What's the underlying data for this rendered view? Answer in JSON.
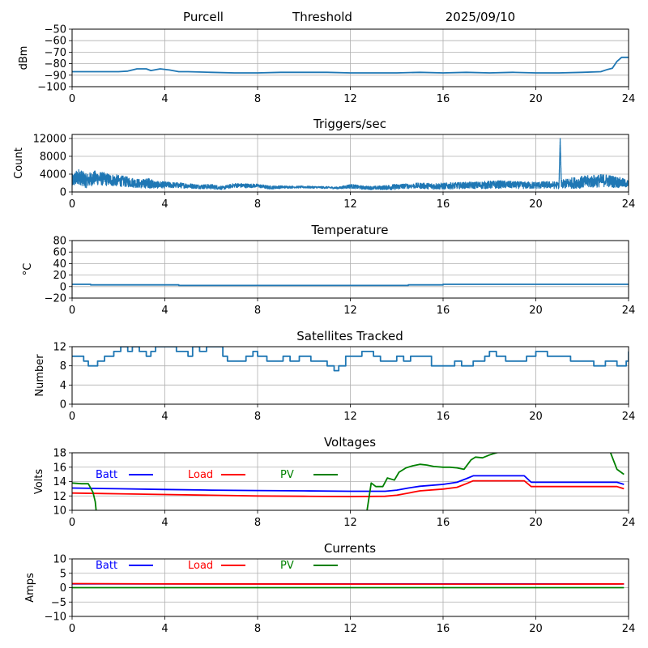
{
  "header": {
    "station": "Purcell",
    "mode": "Threshold",
    "date": "2025/09/10"
  },
  "chart_data": [
    {
      "type": "line",
      "title": "",
      "xlabel": "",
      "ylabel": "dBm",
      "xlim": [
        0,
        24
      ],
      "ylim": [
        -100,
        -50
      ],
      "xticks": [
        "0",
        "4",
        "8",
        "12",
        "16",
        "20",
        "24"
      ],
      "yticks": [
        "-50",
        "-60",
        "-70",
        "-80",
        "-90",
        "-100"
      ],
      "ytick_values": [
        -50,
        -60,
        -70,
        -80,
        -90,
        -100
      ],
      "grid": true,
      "series": [
        {
          "name": "Threshold",
          "color": "#1f77b4",
          "x": [
            0,
            1,
            2,
            2.4,
            2.8,
            3.2,
            3.4,
            3.8,
            4.2,
            4.6,
            5,
            6,
            7,
            8,
            9,
            10,
            11,
            12,
            13,
            14,
            15,
            16,
            17,
            18,
            19,
            20,
            21,
            22,
            22.8,
            23.1,
            23.3,
            23.5,
            23.7,
            24
          ],
          "y": [
            -87,
            -87,
            -87,
            -86.5,
            -84.5,
            -84.5,
            -86,
            -84.5,
            -85.5,
            -87,
            -87,
            -87.5,
            -88,
            -88,
            -87.5,
            -87.5,
            -87.5,
            -88,
            -88,
            -88,
            -87.5,
            -88,
            -87.5,
            -88,
            -87.5,
            -88,
            -88,
            -87.5,
            -87,
            -85,
            -84,
            -78,
            -74.5,
            -74.5
          ]
        }
      ]
    },
    {
      "type": "line",
      "title": "Triggers/sec",
      "xlabel": "",
      "ylabel": "Count",
      "xlim": [
        0,
        24
      ],
      "ylim": [
        0,
        12900
      ],
      "xticks": [
        "0",
        "4",
        "8",
        "12",
        "16",
        "20",
        "24"
      ],
      "yticks": [
        "0",
        "4000",
        "8000",
        "12000"
      ],
      "ytick_values": [
        0,
        4000,
        8000,
        12000
      ],
      "grid": true,
      "series": [
        {
          "name": "Triggers",
          "color": "#1f77b4",
          "x": [
            0,
            0.3,
            0.6,
            1,
            1.5,
            2,
            2.5,
            3,
            3.3,
            3.6,
            4,
            4.5,
            5,
            5.5,
            6,
            6.5,
            7,
            7.5,
            8,
            8.5,
            9,
            9.5,
            10,
            10.5,
            11,
            11.5,
            12,
            12.5,
            13,
            13.5,
            13.9,
            14.3,
            15,
            15.5,
            16,
            16.5,
            17,
            17.5,
            18,
            18.5,
            19,
            19.5,
            20,
            20.5,
            21,
            21.05,
            21.1,
            21.5,
            22,
            22.5,
            23,
            23.5,
            24
          ],
          "y": [
            2500,
            3500,
            2500,
            3200,
            2800,
            2500,
            2200,
            1800,
            2000,
            1600,
            1600,
            1500,
            1400,
            1200,
            1200,
            900,
            1500,
            1400,
            1400,
            1000,
            1100,
            1100,
            1100,
            1050,
            1000,
            900,
            1300,
            1000,
            900,
            1000,
            1100,
            1300,
            1400,
            1300,
            1300,
            1400,
            1500,
            1500,
            1600,
            1700,
            1600,
            1500,
            1500,
            1600,
            1500,
            12000,
            1700,
            2000,
            2200,
            2400,
            2600,
            2200,
            1800
          ],
          "noise_amplitude": [
            1800,
            2200,
            2000,
            2000,
            1800,
            1600,
            1400,
            1200,
            1400,
            1000,
            900,
            800,
            700,
            600,
            700,
            500,
            600,
            600,
            500,
            500,
            400,
            300,
            300,
            300,
            300,
            300,
            600,
            500,
            500,
            600,
            800,
            700,
            800,
            900,
            900,
            900,
            900,
            1000,
            1100,
            1100,
            1000,
            1000,
            1000,
            1000,
            1000,
            0,
            1200,
            1500,
            1700,
            1800,
            1800,
            1600,
            1000
          ]
        }
      ]
    },
    {
      "type": "line",
      "title": "Temperature",
      "xlabel": "",
      "ylabel": "°C",
      "xlim": [
        0,
        24
      ],
      "ylim": [
        -20,
        80
      ],
      "xticks": [
        "0",
        "4",
        "8",
        "12",
        "16",
        "20",
        "24"
      ],
      "yticks": [
        "-20",
        "0",
        "20",
        "40",
        "60",
        "80"
      ],
      "ytick_values": [
        -20,
        0,
        20,
        40,
        60,
        80
      ],
      "grid": true,
      "series": [
        {
          "name": "Temperature",
          "color": "#1f77b4",
          "x": [
            0,
            0.8,
            0.8,
            4.6,
            4.6,
            14.5,
            14.5,
            16,
            16,
            24
          ],
          "y": [
            4,
            4,
            3,
            3,
            2,
            2,
            3,
            3,
            4,
            4
          ]
        }
      ]
    },
    {
      "type": "line",
      "title": "Satellites Tracked",
      "xlabel": "",
      "ylabel": "Number",
      "xlim": [
        0,
        24
      ],
      "ylim": [
        0,
        12
      ],
      "xticks": [
        "0",
        "4",
        "8",
        "12",
        "16",
        "20",
        "24"
      ],
      "yticks": [
        "0",
        "4",
        "8",
        "12"
      ],
      "ytick_values": [
        0,
        4,
        8,
        12
      ],
      "grid": true,
      "series": [
        {
          "name": "Satellites",
          "color": "#1f77b4",
          "step": true,
          "x": [
            0,
            0.1,
            0.5,
            0.7,
            1.1,
            1.4,
            1.8,
            2.1,
            2.4,
            2.6,
            2.9,
            3.2,
            3.4,
            3.6,
            4.5,
            5,
            5.2,
            5.5,
            5.8,
            6.5,
            6.7,
            7,
            7.5,
            7.8,
            8,
            8.4,
            8.8,
            9.1,
            9.4,
            9.8,
            10.3,
            10.6,
            11,
            11.3,
            11.5,
            11.8,
            12.5,
            13,
            13.3,
            13.8,
            14,
            14.3,
            14.6,
            15,
            15.5,
            16,
            16.5,
            16.8,
            17.3,
            17.8,
            18,
            18.3,
            18.7,
            19.3,
            19.6,
            20,
            20.5,
            21,
            21.5,
            22,
            22.5,
            23,
            23.5,
            23.9,
            24
          ],
          "y": [
            10,
            10,
            9,
            8,
            9,
            10,
            11,
            12,
            11,
            12,
            11,
            10,
            11,
            12,
            11,
            10,
            12,
            11,
            12,
            10,
            9,
            9,
            10,
            11,
            10,
            9,
            9,
            10,
            9,
            10,
            9,
            9,
            8,
            7,
            8,
            10,
            11,
            10,
            9,
            9,
            10,
            9,
            10,
            10,
            8,
            8,
            9,
            8,
            9,
            10,
            11,
            10,
            9,
            9,
            10,
            11,
            10,
            10,
            9,
            9,
            8,
            9,
            8,
            9,
            11
          ]
        }
      ]
    },
    {
      "type": "line",
      "title": "Voltages",
      "xlabel": "",
      "ylabel": "Volts",
      "xlim": [
        0,
        24
      ],
      "ylim": [
        10,
        18
      ],
      "xticks": [
        "0",
        "4",
        "8",
        "12",
        "16",
        "20",
        "24"
      ],
      "yticks": [
        "10",
        "12",
        "14",
        "16",
        "18"
      ],
      "ytick_values": [
        10,
        12,
        14,
        16,
        18
      ],
      "grid": true,
      "legend": {
        "placement": "top-left",
        "entries": [
          {
            "label": "Batt",
            "color": "#0000ff"
          },
          {
            "label": "Load",
            "color": "#ff0000"
          },
          {
            "label": "PV",
            "color": "#008000"
          }
        ]
      },
      "series": [
        {
          "name": "Batt",
          "color": "#0000ff",
          "x": [
            0,
            2,
            4,
            6,
            8,
            10,
            12,
            13.5,
            14,
            14.5,
            15,
            16,
            16.6,
            17,
            17.3,
            19.5,
            19.8,
            23.5,
            23.8
          ],
          "y": [
            13.1,
            13.0,
            12.9,
            12.8,
            12.75,
            12.7,
            12.65,
            12.65,
            12.8,
            13.1,
            13.35,
            13.6,
            13.9,
            14.4,
            14.8,
            14.8,
            13.9,
            13.9,
            13.6
          ]
        },
        {
          "name": "Load",
          "color": "#ff0000",
          "x": [
            0,
            2,
            4,
            6,
            8,
            10,
            12,
            13.5,
            14,
            14.5,
            15,
            16,
            16.6,
            17,
            17.3,
            19.5,
            19.8,
            23.5,
            23.8
          ],
          "y": [
            12.4,
            12.3,
            12.2,
            12.1,
            12.0,
            11.95,
            11.9,
            11.95,
            12.1,
            12.4,
            12.7,
            12.95,
            13.2,
            13.7,
            14.1,
            14.1,
            13.3,
            13.3,
            13.0
          ]
        },
        {
          "name": "PV",
          "color": "#008000",
          "x": [
            0,
            0.4,
            0.7,
            0.9,
            1.0,
            1.05,
            12.7,
            12.9,
            13.1,
            13.4,
            13.6,
            13.9,
            14.1,
            14.4,
            14.7,
            15,
            15.3,
            15.6,
            16,
            16.3,
            16.6,
            16.9,
            17.2,
            17.4,
            17.7,
            18,
            18.3,
            18.6,
            23.2,
            23.5,
            23.8
          ],
          "y": [
            13.8,
            13.7,
            13.7,
            12.5,
            11.2,
            9.5,
            9.5,
            13.8,
            13.3,
            13.3,
            14.5,
            14.2,
            15.3,
            15.9,
            16.2,
            16.4,
            16.3,
            16.1,
            16.0,
            16.0,
            15.9,
            15.7,
            17.0,
            17.4,
            17.3,
            17.7,
            18.0,
            18.2,
            18.2,
            15.7,
            15.0
          ]
        }
      ]
    },
    {
      "type": "line",
      "title": "Currents",
      "xlabel": "",
      "ylabel": "Amps",
      "xlim": [
        0,
        24
      ],
      "ylim": [
        -10,
        10
      ],
      "xticks": [
        "0",
        "4",
        "8",
        "12",
        "16",
        "20",
        "24"
      ],
      "yticks": [
        "-10",
        "-5",
        "0",
        "5",
        "10"
      ],
      "ytick_values": [
        -10,
        -5,
        0,
        5,
        10
      ],
      "grid": true,
      "legend": {
        "placement": "top-left",
        "entries": [
          {
            "label": "Batt",
            "color": "#0000ff"
          },
          {
            "label": "Load",
            "color": "#ff0000"
          },
          {
            "label": "PV",
            "color": "#008000"
          }
        ]
      },
      "series": [
        {
          "name": "Batt",
          "color": "#0000ff",
          "x": [
            0,
            23.8
          ],
          "y": [
            1.3,
            1.3
          ]
        },
        {
          "name": "Load",
          "color": "#ff0000",
          "x": [
            0,
            4,
            17,
            19.7,
            23.8
          ],
          "y": [
            1.4,
            1.3,
            1.2,
            1.2,
            1.3
          ]
        },
        {
          "name": "PV",
          "color": "#008000",
          "x": [
            0,
            23.8
          ],
          "y": [
            0,
            0
          ]
        }
      ]
    }
  ]
}
